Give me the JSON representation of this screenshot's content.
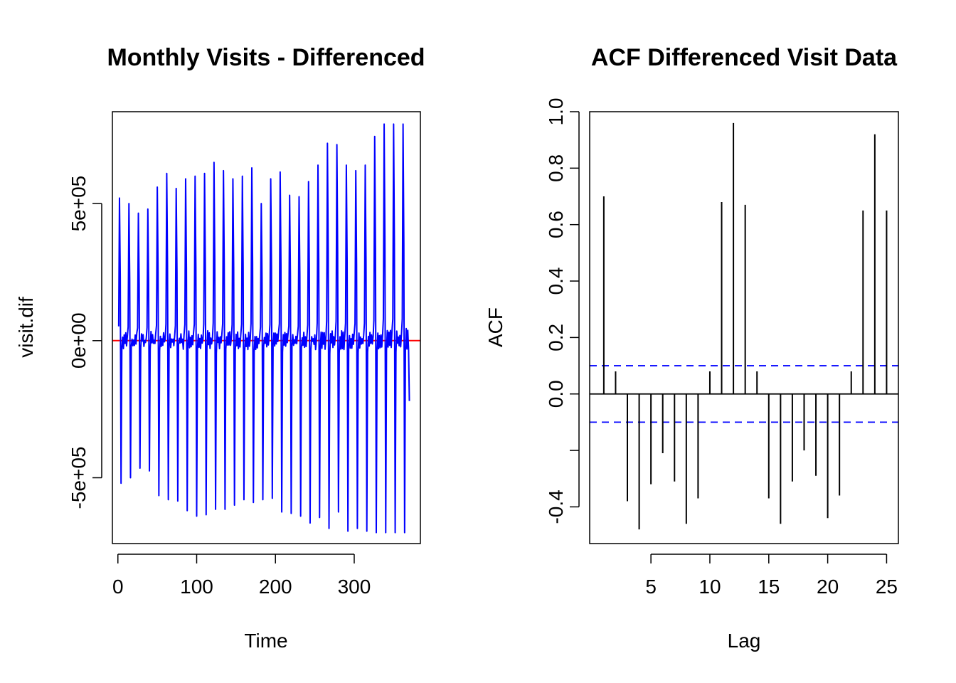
{
  "chart_data": [
    {
      "type": "line",
      "title": "Monthly Visits - Differenced",
      "xlabel": "Time",
      "ylabel": "visit.dif",
      "xlim": [
        -7,
        384
      ],
      "ylim": [
        -740000,
        835000
      ],
      "x_ticks": [
        0,
        100,
        200,
        300
      ],
      "x_tick_labels": [
        "0",
        "100",
        "200",
        "300"
      ],
      "y_ticks": [
        -500000,
        0,
        500000
      ],
      "y_tick_labels": [
        "-5e+05",
        "0e+00",
        "5e+05"
      ],
      "series_color": "#0000ff",
      "reference_line": {
        "y": 0,
        "color": "#ff0000"
      },
      "cycle_length": 12,
      "n_points": 370,
      "x_start": 1,
      "peaks": [
        520000,
        500000,
        465000,
        480000,
        560000,
        610000,
        555000,
        590000,
        600000,
        610000,
        650000,
        620000,
        590000,
        600000,
        630000,
        500000,
        590000,
        615000,
        530000,
        525000,
        580000,
        640000,
        720000,
        715000,
        640000,
        620000,
        640000,
        745000,
        790000
      ],
      "troughs": [
        -520000,
        -500000,
        -465000,
        -475000,
        -565000,
        -580000,
        -585000,
        -620000,
        -640000,
        -635000,
        -615000,
        -615000,
        -600000,
        -580000,
        -590000,
        -580000,
        -575000,
        -625000,
        -630000,
        -640000,
        -665000,
        -645000,
        -685000,
        -625000,
        -695000,
        -685000,
        -695000,
        -700000,
        -700000
      ],
      "last_value": -220000
    },
    {
      "type": "bar",
      "title": "ACF Differenced Visit Data",
      "xlabel": "Lag",
      "ylabel": "ACF",
      "xlim": [
        -0.2,
        26.0
      ],
      "ylim": [
        -0.53,
        1.0
      ],
      "x_ticks": [
        5,
        10,
        15,
        20,
        25
      ],
      "x_tick_labels": [
        "5",
        "10",
        "15",
        "20",
        "25"
      ],
      "y_ticks": [
        -0.4,
        -0.2,
        0.0,
        0.2,
        0.4,
        0.6,
        0.8,
        1.0
      ],
      "y_tick_labels": [
        "-0.4",
        "",
        "0.0",
        "0.2",
        "0.4",
        "0.6",
        "0.8",
        "1.0"
      ],
      "lags": [
        1,
        2,
        3,
        4,
        5,
        6,
        7,
        8,
        9,
        10,
        11,
        12,
        13,
        14,
        15,
        16,
        17,
        18,
        19,
        20,
        21,
        22,
        23,
        24,
        25
      ],
      "values": [
        0.7,
        0.08,
        -0.38,
        -0.48,
        -0.32,
        -0.21,
        -0.31,
        -0.46,
        -0.37,
        0.08,
        0.68,
        0.96,
        0.67,
        0.08,
        -0.37,
        -0.46,
        -0.31,
        -0.2,
        -0.29,
        -0.44,
        -0.36,
        0.08,
        0.65,
        0.92,
        0.65
      ],
      "confidence_bound": 0.1,
      "bar_color": "#000000",
      "bound_color": "#0000ff"
    }
  ]
}
